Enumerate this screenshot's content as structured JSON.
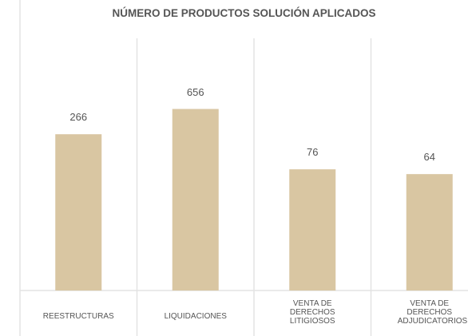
{
  "chart_data": {
    "type": "bar",
    "title": "NÚMERO DE PRODUCTOS SOLUCIÓN APLICADOS",
    "categories": [
      "REESTRUCTURAS",
      "LIQUIDACIONES",
      "VENTA DE DERECHOS LITIGIOSOS",
      "VENTA DE DERECHOS ADJUDICATORIOS"
    ],
    "values": [
      266,
      656,
      76,
      64
    ],
    "color": "#d9c6a2",
    "log_scale": true,
    "ylim": [
      1,
      10000
    ]
  }
}
